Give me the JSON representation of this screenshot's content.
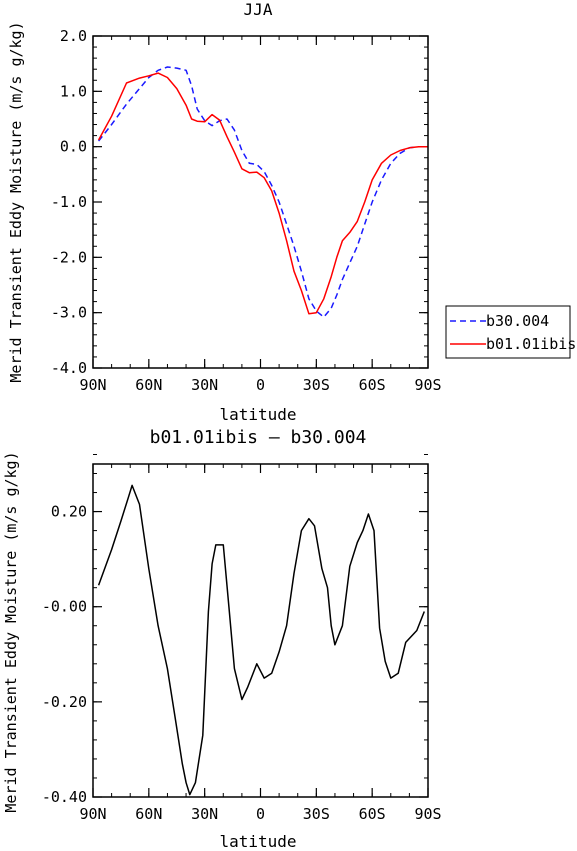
{
  "chart_data": [
    {
      "type": "line",
      "title": "JJA",
      "xlabel": "latitude",
      "ylabel": "Merid Transient Eddy Moisture (m/s g/kg)",
      "xlim": [
        90,
        -90
      ],
      "ylim": [
        -4.0,
        2.0
      ],
      "x_tick_values": [
        90,
        60,
        30,
        0,
        -30,
        -60,
        -90
      ],
      "x_tick_labels": [
        "90N",
        "60N",
        "30N",
        "0",
        "30S",
        "60S",
        "90S"
      ],
      "y_tick_values": [
        2,
        1,
        0,
        -1,
        -2,
        -3,
        -4
      ],
      "y_tick_labels": [
        "2.0",
        "1.0",
        "0.0",
        "-1.0",
        "-2.0",
        "-3.0",
        "-4.0"
      ],
      "legend_position": "right",
      "series": [
        {
          "name": "b30.004",
          "color": "#1a1aff",
          "dash": "dashed",
          "x": [
            87,
            80,
            72,
            65,
            60,
            55,
            50,
            45,
            40,
            37,
            34,
            30,
            26,
            22,
            18,
            14,
            10,
            6,
            2,
            -2,
            -6,
            -10,
            -14,
            -18,
            -22,
            -26,
            -30,
            -34,
            -38,
            -41,
            -44,
            -48,
            -52,
            -56,
            -60,
            -65,
            -70,
            -75,
            -80,
            -85,
            -90
          ],
          "y": [
            0.1,
            0.4,
            0.77,
            1.05,
            1.25,
            1.38,
            1.44,
            1.42,
            1.38,
            1.1,
            0.68,
            0.47,
            0.38,
            0.47,
            0.5,
            0.3,
            -0.07,
            -0.3,
            -0.32,
            -0.45,
            -0.7,
            -1.0,
            -1.4,
            -1.8,
            -2.25,
            -2.75,
            -2.97,
            -3.08,
            -2.92,
            -2.68,
            -2.4,
            -2.1,
            -1.8,
            -1.4,
            -1.0,
            -0.6,
            -0.3,
            -0.12,
            -0.02,
            0.0,
            0.0
          ]
        },
        {
          "name": "b01.01ibis",
          "color": "#ff0000",
          "dash": "solid",
          "x": [
            87,
            80,
            72,
            65,
            60,
            55,
            50,
            45,
            40,
            37,
            34,
            30,
            26,
            22,
            18,
            14,
            10,
            6,
            2,
            -2,
            -6,
            -10,
            -14,
            -18,
            -22,
            -26,
            -30,
            -34,
            -38,
            -41,
            -44,
            -48,
            -52,
            -56,
            -60,
            -65,
            -70,
            -75,
            -80,
            -85,
            -90
          ],
          "y": [
            0.12,
            0.55,
            1.15,
            1.24,
            1.28,
            1.33,
            1.25,
            1.05,
            0.75,
            0.5,
            0.46,
            0.45,
            0.58,
            0.48,
            0.18,
            -0.1,
            -0.4,
            -0.47,
            -0.46,
            -0.56,
            -0.8,
            -1.2,
            -1.7,
            -2.25,
            -2.6,
            -3.02,
            -3.0,
            -2.75,
            -2.35,
            -2.0,
            -1.7,
            -1.55,
            -1.35,
            -1.0,
            -0.6,
            -0.3,
            -0.15,
            -0.07,
            -0.02,
            0.0,
            0.0
          ]
        }
      ]
    },
    {
      "type": "line",
      "title": "b01.01ibis – b30.004",
      "xlabel": "latitude",
      "ylabel": "Merid Transient Eddy Moisture (m/s g/kg)",
      "xlim": [
        90,
        -90
      ],
      "ylim": [
        -0.4,
        0.3
      ],
      "x_tick_values": [
        90,
        60,
        30,
        0,
        -30,
        -60,
        -90
      ],
      "x_tick_labels": [
        "90N",
        "60N",
        "30N",
        "0",
        "30S",
        "60S",
        "90S"
      ],
      "y_tick_values": [
        0.2,
        0.0,
        -0.2,
        -0.4
      ],
      "y_tick_labels": [
        "0.20",
        "-0.00",
        "-0.20",
        "-0.40"
      ],
      "series": [
        {
          "name": "",
          "color": "#000000",
          "dash": "solid",
          "x": [
            87,
            80,
            75,
            71,
            69,
            65,
            60,
            55,
            50,
            46,
            44,
            42,
            40,
            38,
            35,
            31,
            28,
            26,
            24,
            20,
            17,
            14,
            10,
            7,
            2,
            -2,
            -6,
            -10,
            -14,
            -18,
            -22,
            -26,
            -29,
            -33,
            -36,
            -38,
            -40,
            -44,
            -48,
            -52,
            -55,
            -58,
            -61,
            -64,
            -67,
            -70,
            -74,
            -78,
            -84,
            -88
          ],
          "y": [
            0.045,
            0.12,
            0.18,
            0.23,
            0.255,
            0.215,
            0.08,
            -0.04,
            -0.13,
            -0.23,
            -0.28,
            -0.33,
            -0.37,
            -0.395,
            -0.37,
            -0.27,
            -0.01,
            0.09,
            0.13,
            0.13,
            0.0,
            -0.13,
            -0.195,
            -0.17,
            -0.12,
            -0.15,
            -0.14,
            -0.095,
            -0.04,
            0.07,
            0.16,
            0.185,
            0.17,
            0.08,
            0.04,
            -0.04,
            -0.08,
            -0.04,
            0.085,
            0.135,
            0.16,
            0.195,
            0.16,
            -0.045,
            -0.115,
            -0.15,
            -0.14,
            -0.075,
            -0.05,
            -0.01
          ]
        }
      ]
    }
  ]
}
